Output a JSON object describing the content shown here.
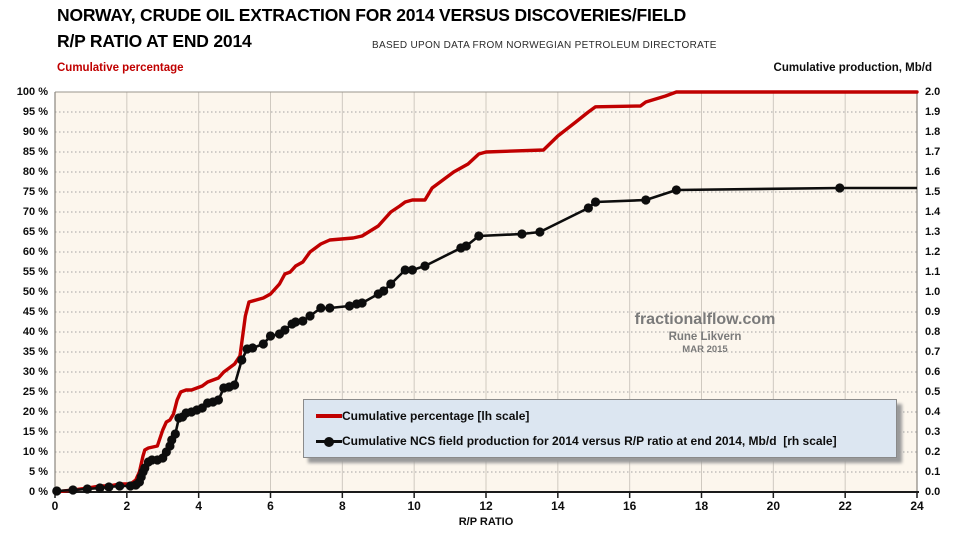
{
  "title": {
    "line1": "NORWAY, CRUDE OIL EXTRACTION FOR 2014 VERSUS DISCOVERIES/FIELD",
    "line2": "R/P RATIO AT END 2014",
    "subtitle": "BASED UPON DATA FROM NORWEGIAN PETROLEUM DIRECTORATE"
  },
  "watermark": {
    "site": "fractionalflow.com",
    "author": "Rune Likvern",
    "date": "MAR 2015"
  },
  "colors": {
    "red_series": "#c00000",
    "black_series": "#0d0d0d",
    "plot_background": "#fcf6ed",
    "legend_background": "#dce6f1",
    "gridline": "#a3a3a3",
    "vertical_gridline": "#cfc9c0"
  },
  "chart_data": {
    "type": "line",
    "x_axis": {
      "label": "R/P RATIO",
      "min": 0,
      "max": 24,
      "tick_step": 2
    },
    "y_left": {
      "label": "Cumulative percentage",
      "min": 0,
      "max": 100,
      "tick_step": 5,
      "suffix": " %"
    },
    "y_right": {
      "label": "Cumulative production, Mb/d",
      "min": 0,
      "max": 2.0,
      "tick_step": 0.1
    },
    "grid": true,
    "legend_position": "bottom-center-inside",
    "series": [
      {
        "name": "Cumulative percentage [lh scale]",
        "axis": "left",
        "color": "#c00000",
        "style": "line",
        "points": [
          [
            0,
            0
          ],
          [
            0.5,
            0.5
          ],
          [
            0.9,
            1
          ],
          [
            1.25,
            1.5
          ],
          [
            1.5,
            1.5
          ],
          [
            1.8,
            2
          ],
          [
            2.1,
            2
          ],
          [
            2.25,
            3
          ],
          [
            2.35,
            5
          ],
          [
            2.45,
            9
          ],
          [
            2.5,
            10.5
          ],
          [
            2.6,
            11
          ],
          [
            2.85,
            11.5
          ],
          [
            3.0,
            15.5
          ],
          [
            3.1,
            17.5
          ],
          [
            3.2,
            18
          ],
          [
            3.3,
            19.5
          ],
          [
            3.4,
            23
          ],
          [
            3.5,
            25
          ],
          [
            3.65,
            25.5
          ],
          [
            3.8,
            25.5
          ],
          [
            3.95,
            26
          ],
          [
            4.1,
            26.5
          ],
          [
            4.25,
            27.5
          ],
          [
            4.4,
            28
          ],
          [
            4.55,
            28.5
          ],
          [
            4.7,
            30
          ],
          [
            4.85,
            31
          ],
          [
            5.0,
            32
          ],
          [
            5.15,
            34
          ],
          [
            5.3,
            44
          ],
          [
            5.4,
            47.5
          ],
          [
            5.6,
            48
          ],
          [
            5.8,
            48.5
          ],
          [
            6.0,
            49.5
          ],
          [
            6.25,
            52
          ],
          [
            6.4,
            54.5
          ],
          [
            6.55,
            55
          ],
          [
            6.7,
            56.5
          ],
          [
            6.9,
            57.5
          ],
          [
            7.1,
            60
          ],
          [
            7.4,
            62
          ],
          [
            7.65,
            63
          ],
          [
            8.3,
            63.5
          ],
          [
            8.55,
            64
          ],
          [
            9.0,
            66.5
          ],
          [
            9.15,
            68
          ],
          [
            9.35,
            70
          ],
          [
            9.6,
            71.5
          ],
          [
            9.75,
            72.5
          ],
          [
            9.95,
            73
          ],
          [
            10.3,
            73
          ],
          [
            10.5,
            76
          ],
          [
            11.1,
            80
          ],
          [
            11.5,
            82
          ],
          [
            11.8,
            84.5
          ],
          [
            12.0,
            85
          ],
          [
            13.6,
            85.5
          ],
          [
            14.0,
            89
          ],
          [
            14.5,
            92.5
          ],
          [
            14.85,
            95
          ],
          [
            15.05,
            96.3
          ],
          [
            16.3,
            96.5
          ],
          [
            16.45,
            97.5
          ],
          [
            17.0,
            99
          ],
          [
            17.3,
            100
          ],
          [
            24,
            100
          ]
        ]
      },
      {
        "name": "Cumulative NCS field production for 2014 versus R/P ratio at end 2014, Mb/d  [rh scale]",
        "axis": "right",
        "color": "#0d0d0d",
        "style": "line+markers",
        "points": [
          [
            0.05,
            0.005
          ],
          [
            0.5,
            0.01
          ],
          [
            0.9,
            0.015
          ],
          [
            1.25,
            0.02
          ],
          [
            1.5,
            0.025
          ],
          [
            1.8,
            0.03
          ],
          [
            2.1,
            0.03
          ],
          [
            2.25,
            0.035
          ],
          [
            2.35,
            0.05
          ],
          [
            2.4,
            0.075
          ],
          [
            2.45,
            0.1
          ],
          [
            2.5,
            0.12
          ],
          [
            2.6,
            0.15
          ],
          [
            2.7,
            0.16
          ],
          [
            2.85,
            0.16
          ],
          [
            3.0,
            0.17
          ],
          [
            3.1,
            0.2
          ],
          [
            3.2,
            0.23
          ],
          [
            3.25,
            0.26
          ],
          [
            3.35,
            0.29
          ],
          [
            3.45,
            0.37
          ],
          [
            3.55,
            0.375
          ],
          [
            3.65,
            0.395
          ],
          [
            3.8,
            0.4
          ],
          [
            3.95,
            0.41
          ],
          [
            4.1,
            0.42
          ],
          [
            4.25,
            0.445
          ],
          [
            4.4,
            0.45
          ],
          [
            4.55,
            0.46
          ],
          [
            4.7,
            0.52
          ],
          [
            4.85,
            0.525
          ],
          [
            5.0,
            0.535
          ],
          [
            5.2,
            0.66
          ],
          [
            5.35,
            0.715
          ],
          [
            5.5,
            0.72
          ],
          [
            5.8,
            0.74
          ],
          [
            6.0,
            0.78
          ],
          [
            6.25,
            0.79
          ],
          [
            6.4,
            0.81
          ],
          [
            6.6,
            0.84
          ],
          [
            6.7,
            0.85
          ],
          [
            6.9,
            0.855
          ],
          [
            7.1,
            0.88
          ],
          [
            7.4,
            0.92
          ],
          [
            7.65,
            0.92
          ],
          [
            8.2,
            0.93
          ],
          [
            8.4,
            0.94
          ],
          [
            8.55,
            0.945
          ],
          [
            9.0,
            0.99
          ],
          [
            9.15,
            1.005
          ],
          [
            9.35,
            1.04
          ],
          [
            9.75,
            1.11
          ],
          [
            9.95,
            1.11
          ],
          [
            10.3,
            1.13
          ],
          [
            11.3,
            1.22
          ],
          [
            11.45,
            1.23
          ],
          [
            11.8,
            1.28
          ],
          [
            13.0,
            1.29
          ],
          [
            13.5,
            1.3
          ],
          [
            14.85,
            1.42
          ],
          [
            15.05,
            1.45
          ],
          [
            16.45,
            1.46
          ],
          [
            17.3,
            1.51
          ],
          [
            21.85,
            1.52
          ]
        ],
        "line_extension": [
          [
            24,
            1.52
          ]
        ]
      }
    ]
  }
}
